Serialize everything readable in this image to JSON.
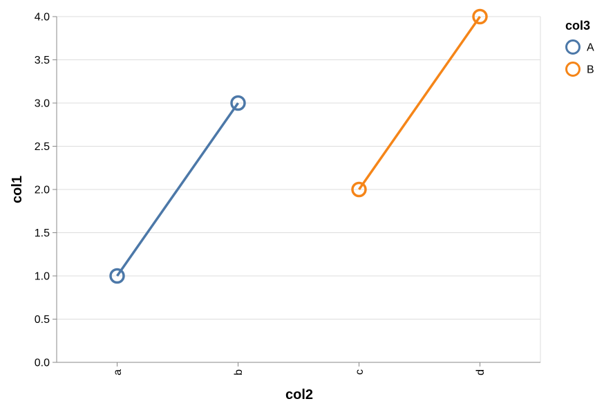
{
  "chart_data": {
    "type": "line",
    "xlabel": "col2",
    "ylabel": "col1",
    "categories": [
      "a",
      "b",
      "c",
      "d"
    ],
    "ylim": [
      0,
      4
    ],
    "yticks": [
      "0.0",
      "0.5",
      "1.0",
      "1.5",
      "2.0",
      "2.5",
      "3.0",
      "3.5",
      "4.0"
    ],
    "grid": true,
    "legend": {
      "title": "col3",
      "position": "top-right"
    },
    "series": [
      {
        "name": "A",
        "color": "#4c78a8",
        "points": [
          {
            "x": "a",
            "y": 1
          },
          {
            "x": "b",
            "y": 3
          }
        ]
      },
      {
        "name": "B",
        "color": "#f58518",
        "points": [
          {
            "x": "c",
            "y": 2
          },
          {
            "x": "d",
            "y": 4
          }
        ]
      }
    ]
  }
}
